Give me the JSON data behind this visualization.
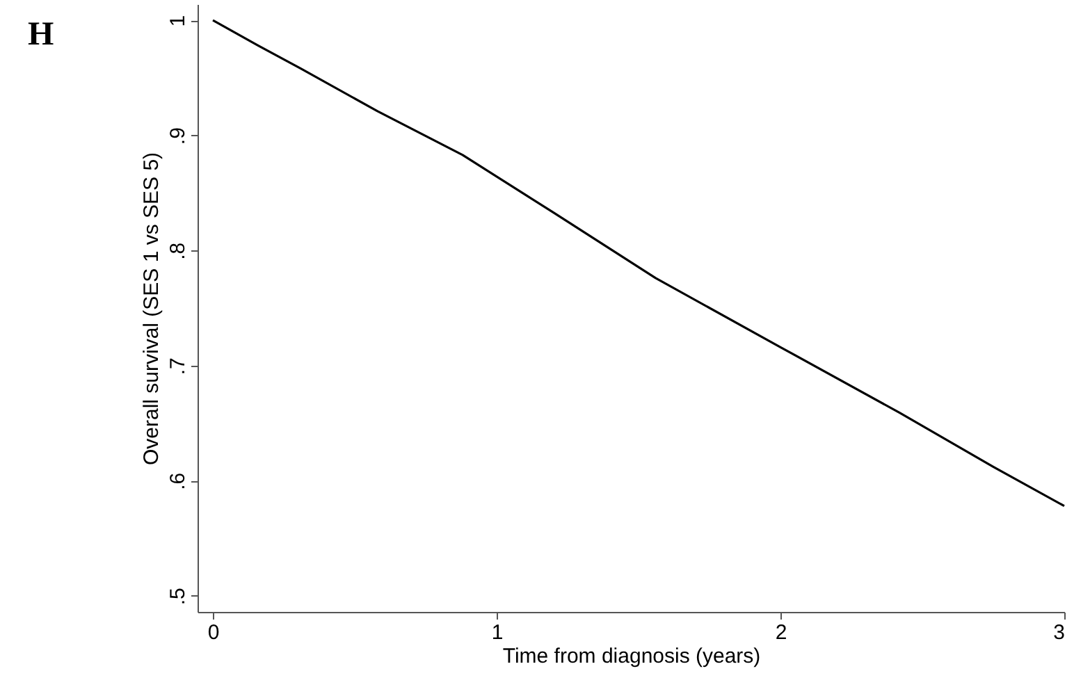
{
  "chart_data": {
    "type": "line",
    "title": "H",
    "xlabel": "Time from diagnosis (years)",
    "ylabel": "Overall survival (SES 1 vs SES 5)",
    "xlim": [
      -0.054,
      3.0
    ],
    "xticks": [
      0,
      1,
      2,
      3
    ],
    "ylim": [
      0.486,
      1.014
    ],
    "yticks": [
      {
        "value": 0.5,
        "label": ".5"
      },
      {
        "value": 0.6,
        "label": ".6"
      },
      {
        "value": 0.7,
        "label": ".7"
      },
      {
        "value": 0.8,
        "label": ".8"
      },
      {
        "value": 0.9,
        "label": ".9"
      },
      {
        "value": 1,
        "label": "1"
      }
    ],
    "grid": false,
    "marker": "none",
    "series": [
      {
        "color": "#000000",
        "line_style": "solid",
        "x": [
          0,
          0.16,
          0.31,
          0.58,
          0.88,
          1.11,
          1.2,
          1.56,
          2.0,
          2.42,
          2.75,
          3.0
        ],
        "values": [
          1.0,
          0.978,
          0.958,
          0.921,
          0.883,
          0.847,
          0.833,
          0.776,
          0.716,
          0.659,
          0.612,
          0.578
        ]
      }
    ]
  }
}
